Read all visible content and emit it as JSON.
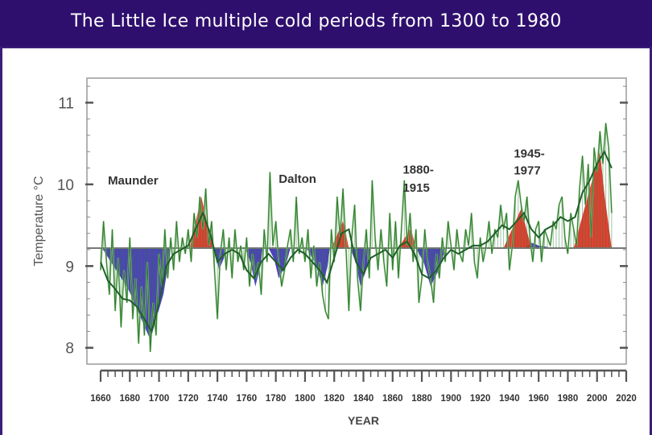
{
  "slide": {
    "title": "The Little Ice multiple cold periods from 1300 to 1980"
  },
  "chart_data": {
    "type": "line",
    "title": "",
    "xlabel": "YEAR",
    "ylabel": "Temperature °C",
    "xlim": [
      1660,
      2020
    ],
    "ylim": [
      7.8,
      11.3
    ],
    "x_ticks": [
      1660,
      1680,
      1700,
      1720,
      1740,
      1760,
      1780,
      1800,
      1820,
      1840,
      1860,
      1880,
      1900,
      1920,
      1940,
      1960,
      1980,
      2000,
      2020
    ],
    "y_ticks": [
      8,
      9,
      10,
      11
    ],
    "baseline": 9.22,
    "grid": false,
    "legend": "none",
    "colors": {
      "series_line": "#2f7d32",
      "series_light": "#9fcf8f",
      "smooth": "#1f5f2a",
      "cold": "#3a2fb0",
      "warm": "#e02a1c",
      "baseline": "#777777",
      "axis": "#555555"
    },
    "annotations": [
      {
        "text": "Maunder",
        "x": 1665,
        "y": 10.0
      },
      {
        "text": "Dalton",
        "x": 1782,
        "y": 10.02
      },
      {
        "text": "1880-",
        "x": 1867,
        "y": 10.13
      },
      {
        "text": "1915",
        "x": 1867,
        "y": 9.91
      },
      {
        "text": "1945-",
        "x": 1943,
        "y": 10.33
      },
      {
        "text": "1977",
        "x": 1943,
        "y": 10.12
      }
    ],
    "series": [
      {
        "values": [
          [
            1660,
            8.95
          ],
          [
            1662,
            9.55
          ],
          [
            1664,
            9.05
          ],
          [
            1666,
            8.65
          ],
          [
            1668,
            9.45
          ],
          [
            1670,
            8.45
          ],
          [
            1672,
            9.1
          ],
          [
            1674,
            8.25
          ],
          [
            1676,
            8.95
          ],
          [
            1678,
            8.55
          ],
          [
            1680,
            9.35
          ],
          [
            1682,
            8.35
          ],
          [
            1684,
            8.85
          ],
          [
            1686,
            8.05
          ],
          [
            1688,
            8.75
          ],
          [
            1690,
            8.15
          ],
          [
            1692,
            9.05
          ],
          [
            1694,
            7.95
          ],
          [
            1696,
            8.55
          ],
          [
            1698,
            8.15
          ],
          [
            1700,
            9.15
          ],
          [
            1702,
            8.75
          ],
          [
            1704,
            9.45
          ],
          [
            1706,
            8.85
          ],
          [
            1708,
            9.35
          ],
          [
            1710,
            8.95
          ],
          [
            1712,
            9.55
          ],
          [
            1714,
            9.05
          ],
          [
            1716,
            9.35
          ],
          [
            1718,
            9.15
          ],
          [
            1720,
            9.45
          ],
          [
            1722,
            9.05
          ],
          [
            1724,
            9.65
          ],
          [
            1726,
            9.35
          ],
          [
            1728,
            9.85
          ],
          [
            1730,
            9.45
          ],
          [
            1732,
            9.95
          ],
          [
            1734,
            9.25
          ],
          [
            1736,
            9.55
          ],
          [
            1738,
            8.95
          ],
          [
            1740,
            8.35
          ],
          [
            1742,
            9.15
          ],
          [
            1744,
            9.45
          ],
          [
            1746,
            8.95
          ],
          [
            1748,
            9.35
          ],
          [
            1750,
            8.85
          ],
          [
            1752,
            9.45
          ],
          [
            1754,
            9.05
          ],
          [
            1756,
            9.25
          ],
          [
            1758,
            8.95
          ],
          [
            1760,
            9.35
          ],
          [
            1762,
            8.75
          ],
          [
            1764,
            9.15
          ],
          [
            1766,
            8.85
          ],
          [
            1768,
            9.05
          ],
          [
            1770,
            8.65
          ],
          [
            1772,
            9.45
          ],
          [
            1774,
            9.05
          ],
          [
            1776,
            10.15
          ],
          [
            1778,
            9.25
          ],
          [
            1780,
            9.55
          ],
          [
            1782,
            9.05
          ],
          [
            1784,
            8.75
          ],
          [
            1786,
            8.95
          ],
          [
            1788,
            9.25
          ],
          [
            1790,
            9.45
          ],
          [
            1792,
            9.05
          ],
          [
            1794,
            9.85
          ],
          [
            1796,
            9.15
          ],
          [
            1798,
            9.35
          ],
          [
            1800,
            9.05
          ],
          [
            1802,
            9.45
          ],
          [
            1804,
            8.85
          ],
          [
            1806,
            9.25
          ],
          [
            1808,
            8.75
          ],
          [
            1810,
            9.05
          ],
          [
            1812,
            8.65
          ],
          [
            1814,
            8.45
          ],
          [
            1816,
            8.35
          ],
          [
            1818,
            9.45
          ],
          [
            1820,
            9.05
          ],
          [
            1822,
            9.85
          ],
          [
            1824,
            9.35
          ],
          [
            1826,
            9.95
          ],
          [
            1828,
            9.25
          ],
          [
            1830,
            8.45
          ],
          [
            1832,
            9.35
          ],
          [
            1834,
            9.75
          ],
          [
            1836,
            8.85
          ],
          [
            1838,
            8.45
          ],
          [
            1840,
            9.05
          ],
          [
            1842,
            9.45
          ],
          [
            1844,
            8.85
          ],
          [
            1846,
            10.05
          ],
          [
            1848,
            9.35
          ],
          [
            1850,
            8.95
          ],
          [
            1852,
            9.45
          ],
          [
            1854,
            9.05
          ],
          [
            1856,
            8.75
          ],
          [
            1858,
            9.65
          ],
          [
            1860,
            8.95
          ],
          [
            1862,
            9.55
          ],
          [
            1864,
            8.85
          ],
          [
            1866,
            9.45
          ],
          [
            1868,
            10.05
          ],
          [
            1870,
            9.25
          ],
          [
            1872,
            9.65
          ],
          [
            1874,
            9.05
          ],
          [
            1876,
            9.45
          ],
          [
            1878,
            8.55
          ],
          [
            1880,
            8.85
          ],
          [
            1882,
            9.45
          ],
          [
            1884,
            9.05
          ],
          [
            1886,
            8.85
          ],
          [
            1888,
            8.55
          ],
          [
            1890,
            9.15
          ],
          [
            1892,
            8.85
          ],
          [
            1894,
            9.35
          ],
          [
            1896,
            9.05
          ],
          [
            1898,
            9.55
          ],
          [
            1900,
            9.25
          ],
          [
            1902,
            8.95
          ],
          [
            1904,
            9.45
          ],
          [
            1906,
            9.15
          ],
          [
            1908,
            9.05
          ],
          [
            1910,
            9.45
          ],
          [
            1912,
            9.25
          ],
          [
            1914,
            9.65
          ],
          [
            1916,
            9.05
          ],
          [
            1918,
            8.85
          ],
          [
            1920,
            9.35
          ],
          [
            1922,
            9.05
          ],
          [
            1924,
            9.25
          ],
          [
            1926,
            9.55
          ],
          [
            1928,
            9.15
          ],
          [
            1930,
            9.45
          ],
          [
            1932,
            9.35
          ],
          [
            1934,
            9.75
          ],
          [
            1936,
            9.45
          ],
          [
            1938,
            9.65
          ],
          [
            1940,
            8.95
          ],
          [
            1942,
            9.25
          ],
          [
            1944,
            9.85
          ],
          [
            1946,
            10.05
          ],
          [
            1948,
            9.75
          ],
          [
            1950,
            9.55
          ],
          [
            1952,
            9.85
          ],
          [
            1954,
            9.35
          ],
          [
            1956,
            9.05
          ],
          [
            1958,
            9.45
          ],
          [
            1960,
            9.55
          ],
          [
            1962,
            9.05
          ],
          [
            1964,
            9.45
          ],
          [
            1966,
            9.35
          ],
          [
            1968,
            9.25
          ],
          [
            1970,
            9.55
          ],
          [
            1972,
            9.45
          ],
          [
            1974,
            9.75
          ],
          [
            1976,
            9.85
          ],
          [
            1978,
            9.35
          ],
          [
            1980,
            9.15
          ],
          [
            1982,
            9.65
          ],
          [
            1984,
            9.45
          ],
          [
            1986,
            9.25
          ],
          [
            1988,
            9.95
          ],
          [
            1990,
            10.35
          ],
          [
            1992,
            9.75
          ],
          [
            1994,
            10.25
          ],
          [
            1996,
            9.35
          ],
          [
            1998,
            10.45
          ],
          [
            2000,
            10.15
          ],
          [
            2002,
            10.65
          ],
          [
            2004,
            10.25
          ],
          [
            2006,
            10.75
          ],
          [
            2008,
            10.45
          ],
          [
            2010,
            9.65
          ]
        ]
      }
    ],
    "smooth": [
      [
        1660,
        9.05
      ],
      [
        1665,
        8.82
      ],
      [
        1670,
        8.72
      ],
      [
        1675,
        8.6
      ],
      [
        1680,
        8.58
      ],
      [
        1685,
        8.5
      ],
      [
        1690,
        8.35
      ],
      [
        1695,
        8.2
      ],
      [
        1700,
        8.55
      ],
      [
        1705,
        9.0
      ],
      [
        1710,
        9.15
      ],
      [
        1715,
        9.2
      ],
      [
        1720,
        9.25
      ],
      [
        1725,
        9.45
      ],
      [
        1730,
        9.65
      ],
      [
        1735,
        9.4
      ],
      [
        1740,
        9.05
      ],
      [
        1745,
        9.15
      ],
      [
        1750,
        9.2
      ],
      [
        1755,
        9.15
      ],
      [
        1760,
        8.95
      ],
      [
        1765,
        8.85
      ],
      [
        1770,
        9.05
      ],
      [
        1775,
        9.15
      ],
      [
        1780,
        9.05
      ],
      [
        1785,
        8.95
      ],
      [
        1790,
        9.1
      ],
      [
        1795,
        9.2
      ],
      [
        1800,
        9.15
      ],
      [
        1805,
        9.05
      ],
      [
        1810,
        8.95
      ],
      [
        1815,
        8.8
      ],
      [
        1820,
        9.1
      ],
      [
        1825,
        9.4
      ],
      [
        1830,
        9.45
      ],
      [
        1835,
        9.05
      ],
      [
        1840,
        8.9
      ],
      [
        1845,
        9.1
      ],
      [
        1850,
        9.15
      ],
      [
        1855,
        9.2
      ],
      [
        1860,
        9.1
      ],
      [
        1865,
        9.25
      ],
      [
        1870,
        9.3
      ],
      [
        1875,
        9.15
      ],
      [
        1880,
        8.9
      ],
      [
        1885,
        8.85
      ],
      [
        1890,
        8.95
      ],
      [
        1895,
        9.1
      ],
      [
        1900,
        9.2
      ],
      [
        1905,
        9.15
      ],
      [
        1910,
        9.2
      ],
      [
        1915,
        9.25
      ],
      [
        1920,
        9.25
      ],
      [
        1925,
        9.3
      ],
      [
        1930,
        9.4
      ],
      [
        1935,
        9.5
      ],
      [
        1940,
        9.45
      ],
      [
        1945,
        9.55
      ],
      [
        1950,
        9.65
      ],
      [
        1955,
        9.45
      ],
      [
        1960,
        9.35
      ],
      [
        1965,
        9.45
      ],
      [
        1970,
        9.5
      ],
      [
        1975,
        9.6
      ],
      [
        1980,
        9.55
      ],
      [
        1985,
        9.6
      ],
      [
        1990,
        9.9
      ],
      [
        1995,
        10.05
      ],
      [
        2000,
        10.25
      ],
      [
        2005,
        10.4
      ],
      [
        2010,
        10.2
      ]
    ],
    "cold_periods": [
      {
        "x0": 1661,
        "x1": 1708,
        "min_x": 1694,
        "min_y": 8.1
      },
      {
        "x0": 1737,
        "x1": 1746,
        "min_x": 1741,
        "min_y": 8.95
      },
      {
        "x0": 1759,
        "x1": 1771,
        "min_x": 1766,
        "min_y": 8.75
      },
      {
        "x0": 1775,
        "x1": 1790,
        "min_x": 1782,
        "min_y": 8.85
      },
      {
        "x0": 1801,
        "x1": 1817,
        "min_x": 1812,
        "min_y": 8.75
      },
      {
        "x0": 1831,
        "x1": 1845,
        "min_x": 1838,
        "min_y": 8.75
      },
      {
        "x0": 1876,
        "x1": 1896,
        "min_x": 1886,
        "min_y": 8.75
      },
      {
        "x0": 1950,
        "x1": 1969,
        "min_x": 1960,
        "min_y": 9.25
      }
    ],
    "warm_periods": [
      {
        "x0": 1721,
        "x1": 1737,
        "max_x": 1729,
        "max_y": 9.85
      },
      {
        "x0": 1818,
        "x1": 1830,
        "max_x": 1826,
        "max_y": 9.55
      },
      {
        "x0": 1864,
        "x1": 1876,
        "max_x": 1872,
        "max_y": 9.45
      },
      {
        "x0": 1936,
        "x1": 1955,
        "max_x": 1948,
        "max_y": 9.7
      },
      {
        "x0": 1984,
        "x1": 2010,
        "max_x": 2002,
        "max_y": 10.4
      }
    ]
  }
}
